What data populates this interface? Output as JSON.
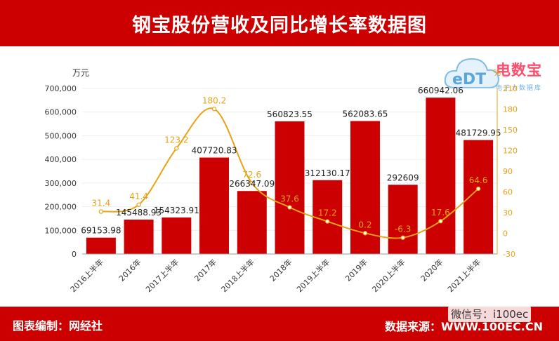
{
  "header": {
    "title": "钢宝股份营收及同比增长率数据图"
  },
  "footer": {
    "left": "图表编制：网经社",
    "source_label": "数据来源：",
    "source_url": "WWW.100EC.CN",
    "wechat": "微信号：i100ec"
  },
  "logo": {
    "letters": "eDT",
    "name": "电数宝",
    "sub": "电子大数据库"
  },
  "colors": {
    "bar": "#cc0000",
    "line": "#e8a317",
    "header": "#cc0000",
    "axis_right": "#e8a317"
  },
  "chart_data": {
    "type": "bar",
    "categories": [
      "2016上半年",
      "2016年",
      "2017上半年",
      "2017年",
      "2018上半年",
      "2018年",
      "2019上半年",
      "2019年",
      "2020上半年",
      "2020年",
      "2021上半年"
    ],
    "series": [
      {
        "values": [
          69153.98,
          145488.93,
          154323.91,
          407720.83,
          266347.09,
          560823.55,
          312130.17,
          562083.65,
          292609,
          660942.06,
          481729.95
        ],
        "labels": [
          "69153.98",
          "145488.93",
          "154323.91",
          "407720.83",
          "266347.09",
          "560823.55",
          "312130.17",
          "562083.65",
          "292609",
          "660942.06",
          "481729.95"
        ]
      },
      {
        "type": "line",
        "axis": "right",
        "values": [
          31.4,
          41.4,
          123.2,
          180.2,
          72.6,
          37.6,
          17.2,
          0.2,
          -6.3,
          17.6,
          64.6
        ],
        "labels": [
          "31.4",
          "41.4",
          "123.2",
          "180.2",
          "72.6",
          "37.6",
          "17.2",
          "0.2",
          "-6.3",
          "17.6",
          "64.6"
        ]
      }
    ],
    "ylabel": "万元",
    "ylabel_right": "%",
    "ylim": [
      0,
      700000
    ],
    "yticks": [
      "0",
      "100,000",
      "200,000",
      "300,000",
      "400,000",
      "500,000",
      "600,000",
      "700,000"
    ],
    "ylim_right": [
      -30,
      210
    ],
    "yticks_right": [
      "-30",
      "0",
      "30",
      "60",
      "90",
      "120",
      "150",
      "180",
      "210"
    ],
    "grid": true
  }
}
